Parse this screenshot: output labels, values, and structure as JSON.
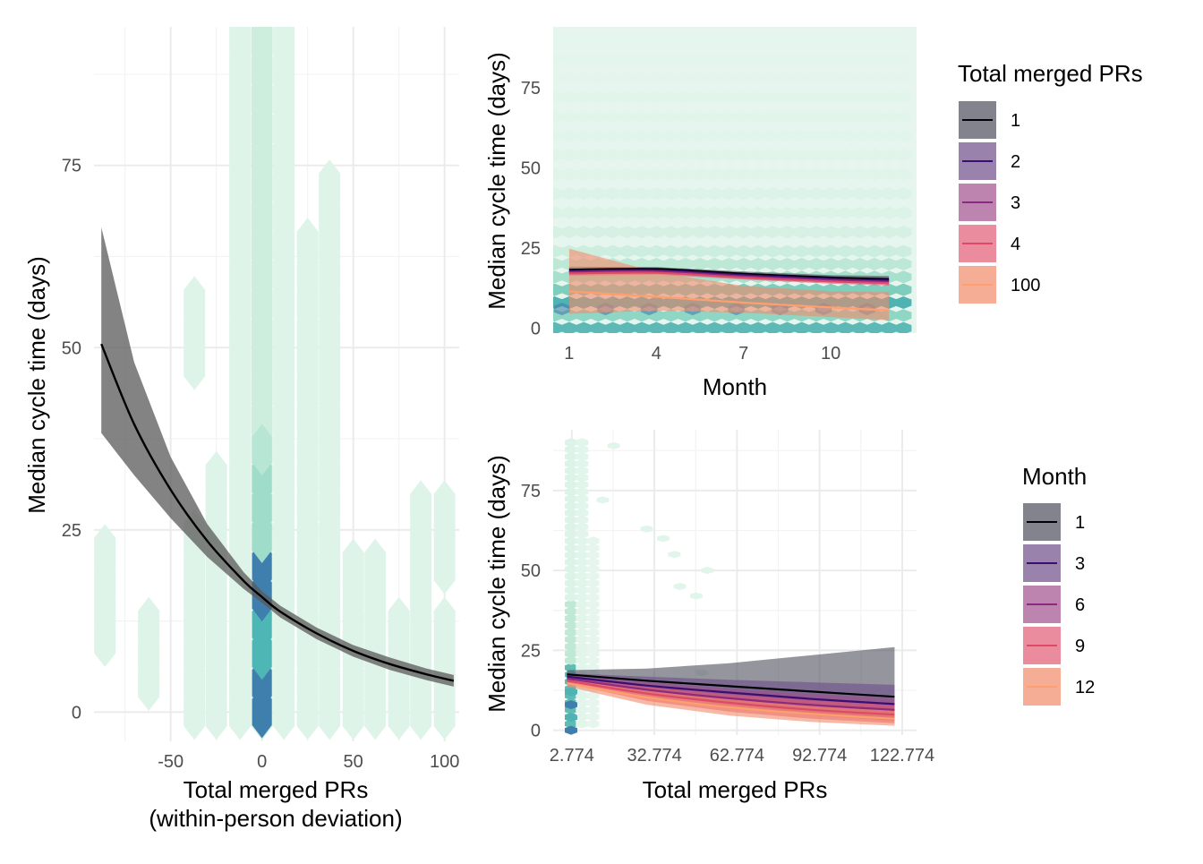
{
  "chart_data": [
    {
      "id": "left",
      "type": "line",
      "xlabel": "Total merged PRs",
      "xlabel2": "(within-person deviation)",
      "ylabel": "Median cycle time (days)",
      "xlim": [
        -92,
        108
      ],
      "ylim": [
        -4,
        94
      ],
      "xticks": [
        -50,
        0,
        50,
        100
      ],
      "xtick_labels": [
        "-50",
        "0",
        "50",
        "100"
      ],
      "yticks": [
        0,
        25,
        50,
        75
      ],
      "ytick_labels": [
        "0",
        "25",
        "50",
        "75"
      ],
      "series": [
        {
          "color": "#000000",
          "ribbon_color": "#5a5a5a",
          "x": [
            -88,
            -70,
            -50,
            -30,
            -10,
            0,
            10,
            30,
            50,
            70,
            90,
            105
          ],
          "y": [
            50.5,
            39.5,
            30.5,
            23.5,
            18.0,
            15.8,
            13.8,
            10.8,
            8.4,
            6.6,
            5.2,
            4.3
          ],
          "lower": [
            38.3,
            32.5,
            26.6,
            21.3,
            16.9,
            15.0,
            13.0,
            10.0,
            7.6,
            5.8,
            4.4,
            3.5
          ],
          "upper": [
            66.5,
            48.0,
            35.0,
            25.8,
            19.2,
            16.6,
            14.6,
            11.6,
            9.2,
            7.5,
            6.0,
            5.1
          ]
        }
      ]
    },
    {
      "id": "top-right",
      "type": "line",
      "xlabel": "Month",
      "ylabel": "Median cycle time (days)",
      "xlim": [
        0.45,
        12.95
      ],
      "ylim": [
        -1.5,
        94
      ],
      "xticks": [
        1,
        4,
        7,
        10
      ],
      "xtick_labels": [
        "1",
        "4",
        "7",
        "10"
      ],
      "yticks": [
        0,
        25,
        50,
        75
      ],
      "ytick_labels": [
        "0",
        "25",
        "50",
        "75"
      ],
      "legend": {
        "title": "Total merged PRs",
        "position": "right",
        "entries": [
          "1",
          "2",
          "3",
          "4",
          "100"
        ]
      },
      "series": [
        {
          "name": "1",
          "color": "#000004",
          "x": [
            1,
            4,
            7,
            10,
            12
          ],
          "y": [
            18.3,
            18.5,
            17.0,
            15.8,
            15.3
          ],
          "lower": [
            17.5,
            17.9,
            16.3,
            15.0,
            14.3
          ],
          "upper": [
            19.2,
            19.1,
            17.7,
            16.6,
            16.3
          ]
        },
        {
          "name": "2",
          "color": "#3b0f70",
          "x": [
            1,
            4,
            7,
            10,
            12
          ],
          "y": [
            17.9,
            18.1,
            16.6,
            15.4,
            14.9
          ],
          "lower": [
            17.2,
            17.5,
            16.0,
            14.7,
            14.1
          ],
          "upper": [
            18.7,
            18.7,
            17.3,
            16.2,
            15.8
          ]
        },
        {
          "name": "3",
          "color": "#8c2981",
          "x": [
            1,
            4,
            7,
            10,
            12
          ],
          "y": [
            17.5,
            17.7,
            16.2,
            15.0,
            14.5
          ],
          "lower": [
            16.8,
            17.1,
            15.6,
            14.3,
            13.7
          ],
          "upper": [
            18.3,
            18.3,
            16.9,
            15.8,
            15.4
          ]
        },
        {
          "name": "4",
          "color": "#de4968",
          "x": [
            1,
            4,
            7,
            10,
            12
          ],
          "y": [
            17.1,
            17.3,
            15.8,
            14.6,
            14.1
          ],
          "lower": [
            16.4,
            16.7,
            15.2,
            13.9,
            13.3
          ],
          "upper": [
            17.9,
            17.9,
            16.5,
            15.4,
            15.0
          ]
        },
        {
          "name": "100",
          "color": "#fe9f6d",
          "x": [
            1,
            4,
            7,
            10,
            12
          ],
          "y": [
            11.5,
            9.8,
            8.0,
            6.5,
            5.6
          ],
          "lower": [
            4.5,
            5.5,
            4.8,
            3.5,
            2.5
          ],
          "upper": [
            24.8,
            17.5,
            13.2,
            11.5,
            11.3
          ]
        }
      ]
    },
    {
      "id": "bottom-right",
      "type": "line",
      "xlabel": "Total merged PRs",
      "ylabel": "Median cycle time (days)",
      "xlim": [
        -4,
        128
      ],
      "ylim": [
        -1.5,
        94
      ],
      "xticks": [
        2.774,
        32.774,
        62.774,
        92.774,
        122.774
      ],
      "xtick_labels": [
        "2.774",
        "32.774",
        "62.774",
        "92.774",
        "122.774"
      ],
      "yticks": [
        0,
        25,
        50,
        75
      ],
      "ytick_labels": [
        "0",
        "25",
        "50",
        "75"
      ],
      "legend": {
        "title": "Month",
        "position": "right",
        "entries": [
          "1",
          "3",
          "6",
          "9",
          "12"
        ]
      },
      "series": [
        {
          "name": "1",
          "color": "#000004",
          "x": [
            1,
            30,
            60,
            90,
            120
          ],
          "y": [
            17.5,
            15.5,
            13.8,
            12.1,
            10.5
          ],
          "lower": [
            16.3,
            11.5,
            8.5,
            6.0,
            4.0
          ],
          "upper": [
            18.8,
            19.3,
            21.0,
            23.5,
            26.0
          ]
        },
        {
          "name": "3",
          "color": "#3b0f70",
          "x": [
            1,
            30,
            60,
            90,
            120
          ],
          "y": [
            16.8,
            14.0,
            11.8,
            9.8,
            8.2
          ],
          "lower": [
            15.8,
            11.2,
            8.0,
            5.5,
            3.8
          ],
          "upper": [
            17.8,
            16.8,
            15.8,
            15.0,
            14.2
          ]
        },
        {
          "name": "6",
          "color": "#8c2981",
          "x": [
            1,
            30,
            60,
            90,
            120
          ],
          "y": [
            16.2,
            12.7,
            10.0,
            7.9,
            6.4
          ],
          "lower": [
            15.3,
            10.3,
            7.0,
            4.7,
            3.0
          ],
          "upper": [
            17.1,
            15.0,
            13.0,
            11.3,
            10.0
          ]
        },
        {
          "name": "9",
          "color": "#de4968",
          "x": [
            1,
            30,
            60,
            90,
            120
          ],
          "y": [
            15.5,
            11.5,
            8.6,
            6.4,
            4.9
          ],
          "lower": [
            14.6,
            9.2,
            5.8,
            3.6,
            2.2
          ],
          "upper": [
            16.4,
            13.6,
            11.2,
            9.3,
            7.9
          ]
        },
        {
          "name": "12",
          "color": "#fe9f6d",
          "x": [
            1,
            30,
            60,
            90,
            120
          ],
          "y": [
            14.7,
            10.3,
            7.2,
            5.1,
            3.6
          ],
          "lower": [
            13.7,
            8.0,
            4.6,
            2.6,
            1.4
          ],
          "upper": [
            15.7,
            12.5,
            9.8,
            7.7,
            6.1
          ]
        }
      ]
    }
  ]
}
